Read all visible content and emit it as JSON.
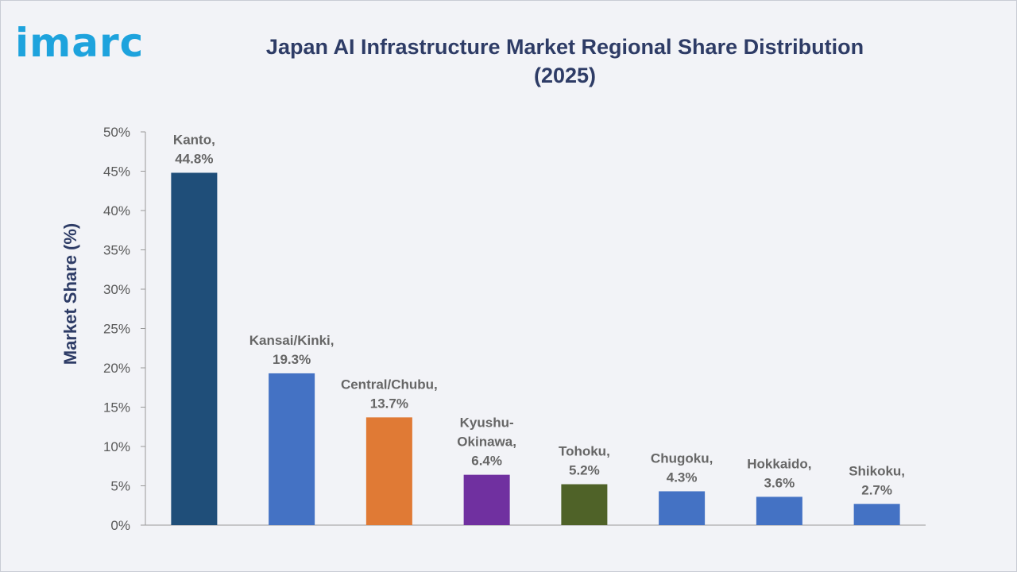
{
  "logo": {
    "text": "imarc",
    "color": "#1ea3dd"
  },
  "chart_data": {
    "type": "bar",
    "title_lines": [
      "Japan AI Infrastructure Market Regional Share Distribution",
      "(2025)"
    ],
    "xlabel": "",
    "ylabel": "Market Share (%)",
    "ylim": [
      0,
      50
    ],
    "yticks": [
      0,
      5,
      10,
      15,
      20,
      25,
      30,
      35,
      40,
      45,
      50
    ],
    "ytick_labels": [
      "0%",
      "5%",
      "10%",
      "15%",
      "20%",
      "25%",
      "30%",
      "35%",
      "40%",
      "45%",
      "50%"
    ],
    "grid": false,
    "categories": [
      "Kanto",
      "Kansai/Kinki",
      "Central/Chubu",
      "Kyushu-Okinawa",
      "Tohoku",
      "Chugoku",
      "Hokkaido",
      "Shikoku"
    ],
    "values": [
      44.8,
      19.3,
      13.7,
      6.4,
      5.2,
      4.3,
      3.6,
      2.7
    ],
    "colors": [
      "#1f4e79",
      "#4472c4",
      "#e07a35",
      "#7030a0",
      "#4f6228",
      "#4472c4",
      "#4472c4",
      "#4472c4"
    ],
    "data_labels": [
      [
        "Kanto,",
        "44.8%"
      ],
      [
        "Kansai/Kinki,",
        "19.3%"
      ],
      [
        "Central/Chubu,",
        "13.7%"
      ],
      [
        "Kyushu-",
        "Okinawa,",
        "6.4%"
      ],
      [
        "Tohoku,",
        "5.2%"
      ],
      [
        "Chugoku,",
        "4.3%"
      ],
      [
        "Hokkaido,",
        "3.6%"
      ],
      [
        "Shikoku,",
        "2.7%"
      ]
    ]
  }
}
